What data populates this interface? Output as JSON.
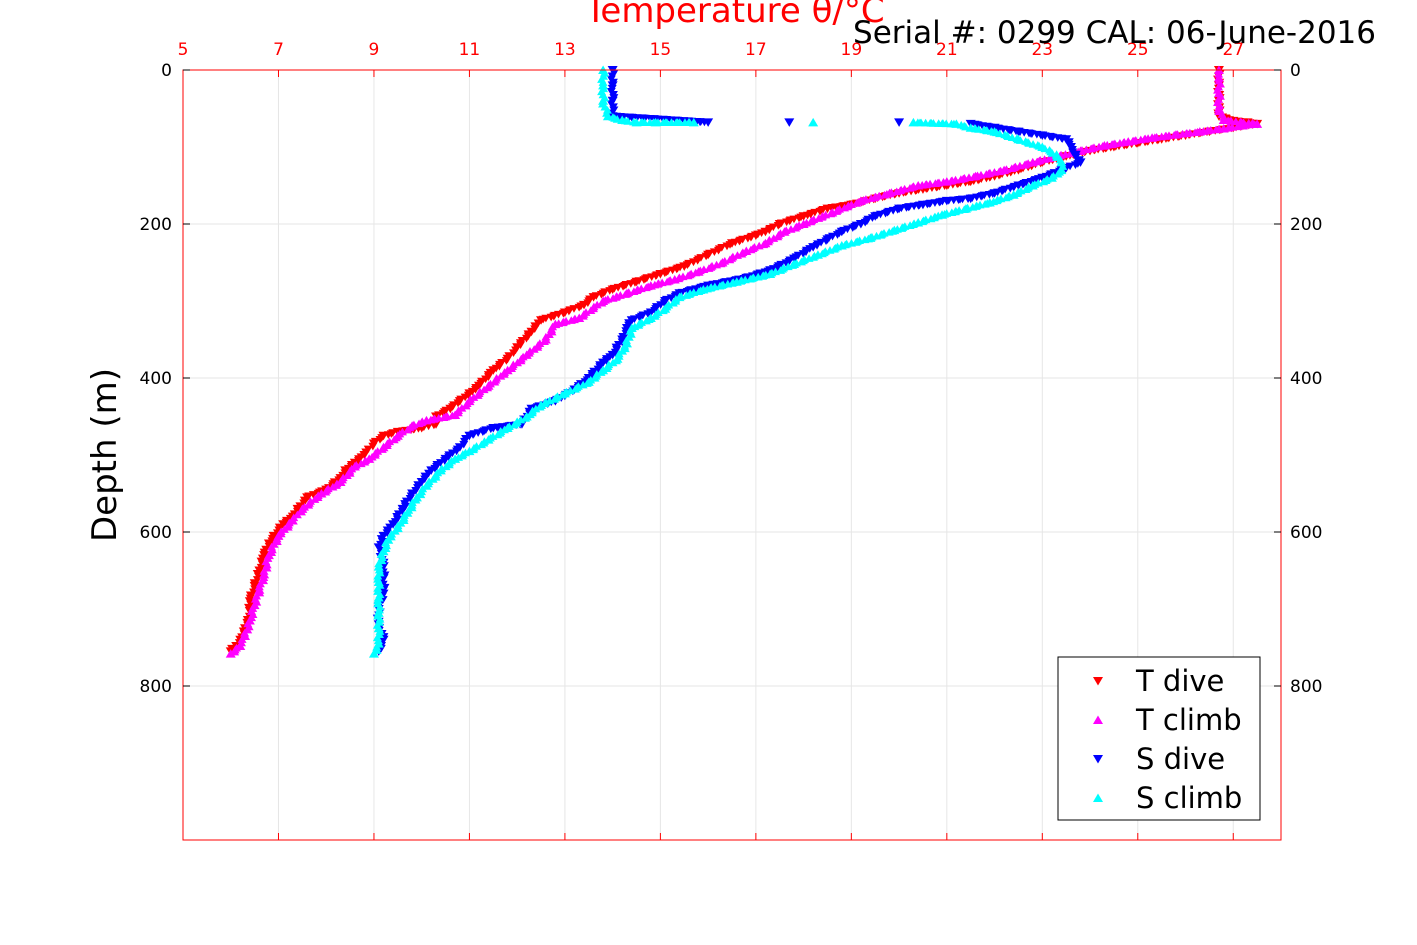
{
  "chart_data": {
    "type": "scatter",
    "title": "Temperature θ/°C",
    "annotation": "Serial #: 0299 CAL: 06-June-2016",
    "xlabel": "Temperature θ/°C",
    "ylabel": "Depth (m)",
    "xlim": [
      5,
      28
    ],
    "ylim": [
      1000,
      0
    ],
    "x_ticks": [
      5,
      7,
      9,
      11,
      13,
      15,
      17,
      19,
      21,
      23,
      25,
      27
    ],
    "y_ticks": [
      0,
      200,
      400,
      600,
      800
    ],
    "grid": true,
    "legend_position": "bottom-right",
    "colors": {
      "axis_top": "#ff0000",
      "t_dive": "#ff0000",
      "t_climb": "#ff00ff",
      "s_dive": "#0000ff",
      "s_climb": "#00ffff",
      "grid": "#e6e6e6"
    },
    "series": [
      {
        "name": "T dive",
        "marker": "triangle-down",
        "color": "#ff0000",
        "points": [
          [
            26.7,
            0
          ],
          [
            26.7,
            20
          ],
          [
            26.7,
            40
          ],
          [
            26.7,
            60
          ],
          [
            27.0,
            66
          ],
          [
            27.3,
            68
          ],
          [
            27.5,
            70
          ],
          [
            27.0,
            75
          ],
          [
            26.5,
            80
          ],
          [
            26.0,
            85
          ],
          [
            25.5,
            90
          ],
          [
            25.0,
            95
          ],
          [
            24.5,
            100
          ],
          [
            24.0,
            105
          ],
          [
            23.5,
            112
          ],
          [
            23.0,
            120
          ],
          [
            22.5,
            130
          ],
          [
            22.0,
            138
          ],
          [
            21.5,
            145
          ],
          [
            21.0,
            150
          ],
          [
            20.5,
            155
          ],
          [
            20.0,
            160
          ],
          [
            19.5,
            167
          ],
          [
            19.0,
            175
          ],
          [
            18.5,
            180
          ],
          [
            18.0,
            190
          ],
          [
            17.5,
            200
          ],
          [
            17.2,
            210
          ],
          [
            17.0,
            215
          ],
          [
            16.5,
            225
          ],
          [
            16.0,
            240
          ],
          [
            15.5,
            255
          ],
          [
            15.0,
            265
          ],
          [
            14.5,
            275
          ],
          [
            14.0,
            285
          ],
          [
            13.6,
            295
          ],
          [
            13.4,
            305
          ],
          [
            13.0,
            315
          ],
          [
            12.5,
            325
          ],
          [
            12.3,
            340
          ],
          [
            12.0,
            360
          ],
          [
            11.8,
            375
          ],
          [
            11.5,
            390
          ],
          [
            11.2,
            410
          ],
          [
            11.0,
            420
          ],
          [
            10.8,
            430
          ],
          [
            10.6,
            440
          ],
          [
            10.3,
            450
          ],
          [
            10.3,
            460
          ],
          [
            10.0,
            465
          ],
          [
            9.5,
            470
          ],
          [
            9.2,
            475
          ],
          [
            9.0,
            485
          ],
          [
            8.8,
            500
          ],
          [
            8.6,
            510
          ],
          [
            8.4,
            520
          ],
          [
            8.3,
            530
          ],
          [
            8.0,
            545
          ],
          [
            7.6,
            555
          ],
          [
            7.4,
            570
          ],
          [
            7.3,
            580
          ],
          [
            7.1,
            590
          ],
          [
            6.9,
            605
          ],
          [
            6.8,
            615
          ],
          [
            6.7,
            630
          ],
          [
            6.6,
            650
          ],
          [
            6.5,
            670
          ],
          [
            6.4,
            690
          ],
          [
            6.4,
            710
          ],
          [
            6.3,
            725
          ],
          [
            6.2,
            740
          ],
          [
            6.0,
            755
          ]
        ]
      },
      {
        "name": "T climb",
        "marker": "triangle-up",
        "color": "#ff00ff",
        "points": [
          [
            6.0,
            758
          ],
          [
            6.2,
            748
          ],
          [
            6.3,
            735
          ],
          [
            6.4,
            715
          ],
          [
            6.5,
            695
          ],
          [
            6.6,
            675
          ],
          [
            6.7,
            655
          ],
          [
            6.8,
            630
          ],
          [
            7.0,
            605
          ],
          [
            7.3,
            585
          ],
          [
            7.5,
            570
          ],
          [
            7.9,
            550
          ],
          [
            8.3,
            535
          ],
          [
            8.6,
            515
          ],
          [
            8.9,
            505
          ],
          [
            9.2,
            490
          ],
          [
            9.5,
            475
          ],
          [
            9.8,
            462
          ],
          [
            10.1,
            455
          ],
          [
            10.7,
            448
          ],
          [
            11.0,
            430
          ],
          [
            11.4,
            410
          ],
          [
            11.8,
            390
          ],
          [
            12.2,
            370
          ],
          [
            12.6,
            350
          ],
          [
            12.8,
            330
          ],
          [
            13.3,
            322
          ],
          [
            13.8,
            300
          ],
          [
            14.3,
            290
          ],
          [
            14.8,
            280
          ],
          [
            15.3,
            272
          ],
          [
            15.8,
            262
          ],
          [
            16.3,
            250
          ],
          [
            16.8,
            235
          ],
          [
            17.2,
            225
          ],
          [
            17.6,
            210
          ],
          [
            18.0,
            200
          ],
          [
            18.6,
            185
          ],
          [
            19.2,
            170
          ],
          [
            19.8,
            160
          ],
          [
            20.4,
            150
          ],
          [
            21.0,
            145
          ],
          [
            21.6,
            138
          ],
          [
            22.2,
            130
          ],
          [
            22.8,
            120
          ],
          [
            23.3,
            112
          ],
          [
            23.8,
            105
          ],
          [
            24.3,
            98
          ],
          [
            24.8,
            93
          ],
          [
            25.3,
            88
          ],
          [
            25.8,
            84
          ],
          [
            26.3,
            80
          ],
          [
            26.8,
            76
          ],
          [
            27.2,
            72
          ],
          [
            27.5,
            70
          ],
          [
            26.8,
            65
          ],
          [
            26.7,
            50
          ],
          [
            26.7,
            30
          ],
          [
            26.7,
            10
          ],
          [
            26.7,
            0
          ]
        ]
      },
      {
        "name": "S dive",
        "marker": "triangle-down",
        "color": "#0000ff",
        "points": [
          [
            14.0,
            0
          ],
          [
            14.0,
            20
          ],
          [
            14.0,
            40
          ],
          [
            14.0,
            60
          ],
          [
            16.0,
            68
          ],
          [
            17.7,
            68
          ],
          [
            20.0,
            68
          ],
          [
            21.5,
            70
          ],
          [
            22.0,
            75
          ],
          [
            22.5,
            80
          ],
          [
            23.0,
            85
          ],
          [
            23.5,
            90
          ],
          [
            23.6,
            100
          ],
          [
            23.7,
            110
          ],
          [
            23.8,
            120
          ],
          [
            23.4,
            130
          ],
          [
            23.0,
            140
          ],
          [
            22.5,
            150
          ],
          [
            22.0,
            160
          ],
          [
            21.5,
            167
          ],
          [
            21.0,
            170
          ],
          [
            20.5,
            175
          ],
          [
            20.0,
            180
          ],
          [
            19.5,
            190
          ],
          [
            19.2,
            200
          ],
          [
            18.8,
            210
          ],
          [
            18.5,
            220
          ],
          [
            18.2,
            230
          ],
          [
            17.8,
            245
          ],
          [
            17.3,
            260
          ],
          [
            16.8,
            270
          ],
          [
            16.0,
            280
          ],
          [
            15.4,
            290
          ],
          [
            15.1,
            300
          ],
          [
            14.8,
            315
          ],
          [
            14.4,
            325
          ],
          [
            14.3,
            335
          ],
          [
            14.2,
            350
          ],
          [
            14.0,
            370
          ],
          [
            13.8,
            380
          ],
          [
            13.5,
            400
          ],
          [
            13.2,
            415
          ],
          [
            12.8,
            430
          ],
          [
            12.3,
            440
          ],
          [
            12.1,
            460
          ],
          [
            11.5,
            465
          ],
          [
            11.0,
            475
          ],
          [
            10.8,
            490
          ],
          [
            10.5,
            505
          ],
          [
            10.2,
            520
          ],
          [
            10.0,
            535
          ],
          [
            9.8,
            550
          ],
          [
            9.6,
            570
          ],
          [
            9.4,
            590
          ],
          [
            9.2,
            605
          ],
          [
            9.1,
            620
          ],
          [
            9.2,
            640
          ],
          [
            9.2,
            660
          ],
          [
            9.2,
            680
          ],
          [
            9.1,
            700
          ],
          [
            9.1,
            720
          ],
          [
            9.2,
            740
          ],
          [
            9.1,
            755
          ]
        ]
      },
      {
        "name": "S climb",
        "marker": "triangle-up",
        "color": "#00ffff",
        "points": [
          [
            9.0,
            758
          ],
          [
            9.1,
            745
          ],
          [
            9.1,
            725
          ],
          [
            9.1,
            705
          ],
          [
            9.1,
            685
          ],
          [
            9.1,
            665
          ],
          [
            9.1,
            645
          ],
          [
            9.2,
            625
          ],
          [
            9.3,
            610
          ],
          [
            9.5,
            595
          ],
          [
            9.7,
            575
          ],
          [
            9.9,
            555
          ],
          [
            10.1,
            540
          ],
          [
            10.4,
            520
          ],
          [
            10.7,
            505
          ],
          [
            11.0,
            495
          ],
          [
            11.4,
            480
          ],
          [
            11.8,
            465
          ],
          [
            12.2,
            450
          ],
          [
            12.5,
            435
          ],
          [
            13.0,
            420
          ],
          [
            13.5,
            405
          ],
          [
            13.8,
            390
          ],
          [
            14.1,
            375
          ],
          [
            14.3,
            355
          ],
          [
            14.4,
            335
          ],
          [
            14.8,
            322
          ],
          [
            15.1,
            310
          ],
          [
            15.4,
            295
          ],
          [
            15.9,
            285
          ],
          [
            16.6,
            275
          ],
          [
            17.3,
            265
          ],
          [
            17.8,
            252
          ],
          [
            18.3,
            240
          ],
          [
            18.8,
            228
          ],
          [
            19.4,
            218
          ],
          [
            19.9,
            208
          ],
          [
            20.4,
            198
          ],
          [
            20.9,
            188
          ],
          [
            21.4,
            180
          ],
          [
            21.9,
            172
          ],
          [
            22.4,
            162
          ],
          [
            22.8,
            150
          ],
          [
            23.2,
            140
          ],
          [
            23.4,
            130
          ],
          [
            23.4,
            120
          ],
          [
            23.3,
            110
          ],
          [
            23.0,
            100
          ],
          [
            22.5,
            90
          ],
          [
            22.0,
            80
          ],
          [
            21.5,
            75
          ],
          [
            21.2,
            70
          ],
          [
            20.3,
            68
          ],
          [
            18.2,
            68
          ],
          [
            15.7,
            68
          ],
          [
            14.9,
            68
          ],
          [
            14.5,
            68
          ],
          [
            14.2,
            65
          ],
          [
            13.9,
            60
          ],
          [
            13.8,
            40
          ],
          [
            13.8,
            20
          ],
          [
            13.8,
            0
          ]
        ]
      }
    ]
  }
}
